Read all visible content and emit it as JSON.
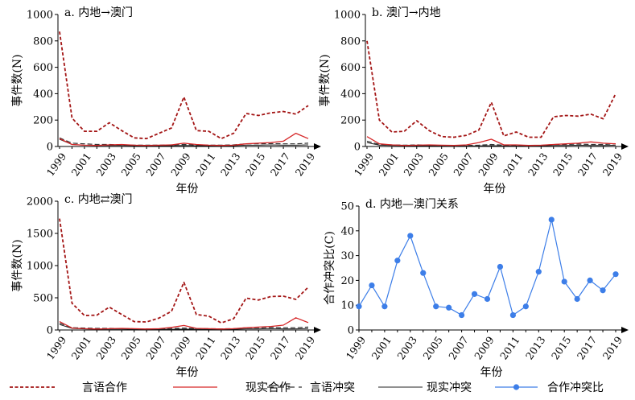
{
  "figure": {
    "x_label": "年份",
    "y_label_count": "事件数(N)",
    "y_label_ratio": "合作冲突比(C)"
  },
  "legend": [
    {
      "label": "言语合作",
      "series": "verbal_coop"
    },
    {
      "label": "现实合作",
      "series": "material_coop"
    },
    {
      "label": "言语冲突",
      "series": "verbal_conf"
    },
    {
      "label": "现实冲突",
      "series": "material_conf"
    },
    {
      "label": "合作冲突比",
      "series": "ratio"
    }
  ],
  "colors": {
    "verbal_coop": "#a31515",
    "material_coop": "#d62728",
    "verbal_conf": "#333333",
    "material_conf": "#222222",
    "ratio": "#3d7ee8",
    "axis": "#000000"
  },
  "chart_data": [
    {
      "id": "a",
      "type": "line",
      "title": "a. 内地→澳门",
      "xlabel": "年份",
      "ylabel": "事件数(N)",
      "x": [
        1999,
        2000,
        2001,
        2002,
        2003,
        2004,
        2005,
        2006,
        2007,
        2008,
        2009,
        2010,
        2011,
        2012,
        2013,
        2014,
        2015,
        2016,
        2017,
        2018,
        2019
      ],
      "xticks": [
        1999,
        2001,
        2003,
        2005,
        2007,
        2009,
        2011,
        2013,
        2015,
        2017,
        2019
      ],
      "ylim": [
        0,
        1000
      ],
      "yticks": [
        0,
        200,
        400,
        600,
        800,
        1000
      ],
      "series": [
        {
          "key": "verbal_coop",
          "name": "言语合作",
          "values": [
            870,
            215,
            115,
            115,
            180,
            120,
            65,
            60,
            100,
            140,
            375,
            120,
            115,
            60,
            100,
            250,
            235,
            255,
            265,
            245,
            310
          ]
        },
        {
          "key": "material_coop",
          "name": "现实合作",
          "values": [
            60,
            15,
            10,
            8,
            12,
            15,
            10,
            8,
            10,
            12,
            25,
            15,
            10,
            8,
            10,
            20,
            25,
            30,
            40,
            100,
            60
          ]
        },
        {
          "key": "verbal_conf",
          "name": "言语冲突",
          "values": [
            65,
            25,
            20,
            15,
            15,
            12,
            10,
            10,
            10,
            12,
            15,
            12,
            10,
            10,
            12,
            20,
            20,
            22,
            20,
            20,
            25
          ]
        },
        {
          "key": "material_conf",
          "name": "现实冲突",
          "values": [
            55,
            15,
            10,
            8,
            8,
            8,
            6,
            6,
            6,
            6,
            8,
            6,
            6,
            5,
            6,
            10,
            10,
            12,
            10,
            10,
            12
          ]
        }
      ]
    },
    {
      "id": "b",
      "type": "line",
      "title": "b. 澳门→内地",
      "xlabel": "年份",
      "ylabel": "事件数(N)",
      "x": [
        1999,
        2000,
        2001,
        2002,
        2003,
        2004,
        2005,
        2006,
        2007,
        2008,
        2009,
        2010,
        2011,
        2012,
        2013,
        2014,
        2015,
        2016,
        2017,
        2018,
        2019
      ],
      "xticks": [
        1999,
        2001,
        2003,
        2005,
        2007,
        2009,
        2011,
        2013,
        2015,
        2017,
        2019
      ],
      "ylim": [
        0,
        1000
      ],
      "yticks": [
        0,
        200,
        400,
        600,
        800,
        1000
      ],
      "series": [
        {
          "key": "verbal_coop",
          "name": "言语合作",
          "values": [
            800,
            200,
            110,
            115,
            195,
            120,
            75,
            70,
            85,
            125,
            335,
            80,
            110,
            70,
            70,
            225,
            235,
            230,
            245,
            210,
            400
          ]
        },
        {
          "key": "material_coop",
          "name": "现实合作",
          "values": [
            75,
            20,
            12,
            8,
            10,
            12,
            10,
            8,
            12,
            30,
            55,
            12,
            12,
            8,
            10,
            15,
            20,
            25,
            35,
            25,
            20
          ]
        },
        {
          "key": "verbal_conf",
          "name": "言语冲突",
          "values": [
            40,
            15,
            12,
            10,
            12,
            10,
            8,
            8,
            8,
            10,
            15,
            10,
            10,
            8,
            8,
            15,
            15,
            18,
            15,
            15,
            20
          ]
        },
        {
          "key": "material_conf",
          "name": "现实冲突",
          "values": [
            30,
            10,
            8,
            6,
            6,
            6,
            5,
            5,
            5,
            5,
            6,
            5,
            5,
            5,
            5,
            8,
            8,
            10,
            8,
            8,
            10
          ]
        }
      ]
    },
    {
      "id": "c",
      "type": "line",
      "title": "c. 内地⇄澳门",
      "xlabel": "年份",
      "ylabel": "事件数(N)",
      "x": [
        1999,
        2000,
        2001,
        2002,
        2003,
        2004,
        2005,
        2006,
        2007,
        2008,
        2009,
        2010,
        2011,
        2012,
        2013,
        2014,
        2015,
        2016,
        2017,
        2018,
        2019
      ],
      "xticks": [
        1999,
        2001,
        2003,
        2005,
        2007,
        2009,
        2011,
        2013,
        2015,
        2017,
        2019
      ],
      "ylim": [
        0,
        2000
      ],
      "yticks": [
        0,
        500,
        1000,
        1500,
        2000
      ],
      "series": [
        {
          "key": "verbal_coop",
          "name": "言语合作",
          "values": [
            1730,
            415,
            225,
            230,
            355,
            240,
            130,
            125,
            185,
            290,
            740,
            240,
            215,
            110,
            175,
            495,
            465,
            520,
            525,
            475,
            665
          ]
        },
        {
          "key": "material_coop",
          "name": "现实合作",
          "values": [
            130,
            30,
            20,
            15,
            20,
            25,
            20,
            15,
            20,
            40,
            70,
            25,
            20,
            15,
            20,
            35,
            45,
            55,
            75,
            190,
            115
          ]
        },
        {
          "key": "verbal_conf",
          "name": "言语冲突",
          "values": [
            105,
            35,
            30,
            25,
            25,
            22,
            18,
            18,
            18,
            22,
            30,
            22,
            20,
            18,
            20,
            35,
            35,
            40,
            35,
            35,
            45
          ]
        },
        {
          "key": "material_conf",
          "name": "现实冲突",
          "values": [
            85,
            25,
            18,
            14,
            14,
            14,
            11,
            11,
            11,
            11,
            14,
            11,
            11,
            10,
            11,
            18,
            18,
            22,
            18,
            18,
            22
          ]
        }
      ]
    },
    {
      "id": "d",
      "type": "line",
      "title": "d. 内地—澳门关系",
      "xlabel": "年份",
      "ylabel": "合作冲突比(C)",
      "x": [
        1999,
        2000,
        2001,
        2002,
        2003,
        2004,
        2005,
        2006,
        2007,
        2008,
        2009,
        2010,
        2011,
        2012,
        2013,
        2014,
        2015,
        2016,
        2017,
        2018,
        2019
      ],
      "xticks": [
        1999,
        2001,
        2003,
        2005,
        2007,
        2009,
        2011,
        2013,
        2015,
        2017,
        2019
      ],
      "ylim": [
        0,
        50
      ],
      "yticks": [
        0,
        10,
        20,
        30,
        40,
        50
      ],
      "series": [
        {
          "key": "ratio",
          "name": "合作冲突比",
          "values": [
            9.5,
            18,
            9.5,
            28,
            38,
            23,
            9.5,
            9,
            6,
            14.5,
            12.5,
            25.5,
            6,
            9.5,
            23.5,
            44.5,
            19.5,
            12.5,
            20,
            16,
            22.5
          ]
        }
      ]
    }
  ]
}
